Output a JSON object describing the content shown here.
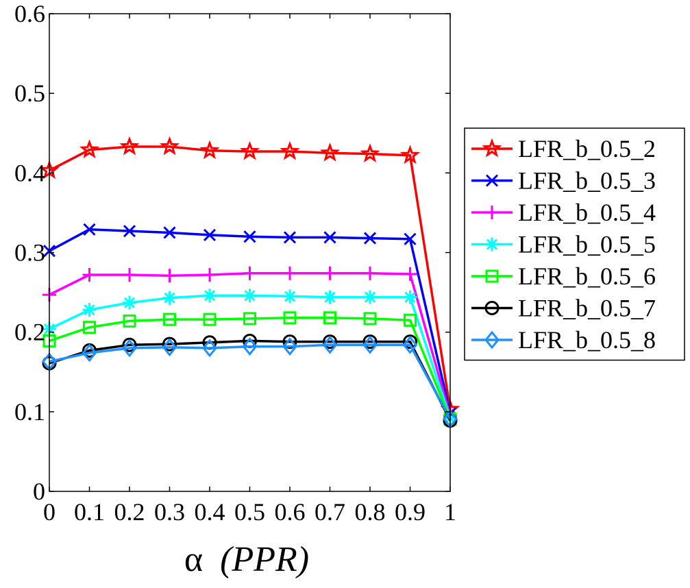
{
  "chart_data": {
    "type": "line",
    "title": "",
    "xlabel_symbol": "α",
    "xlabel_suffix": "(PPR)",
    "ylabel": "",
    "x": [
      0,
      0.1,
      0.2,
      0.3,
      0.4,
      0.5,
      0.6,
      0.7,
      0.8,
      0.9,
      1
    ],
    "xtick_labels": [
      "0",
      "0.1",
      "0.2",
      "0.3",
      "0.4",
      "0.5",
      "0.6",
      "0.7",
      "0.8",
      "0.9",
      "1"
    ],
    "xlim": [
      0,
      1
    ],
    "ylim": [
      0,
      0.6
    ],
    "yticks": [
      0,
      0.1,
      0.2,
      0.3,
      0.4,
      0.5,
      0.6
    ],
    "ytick_labels": [
      "0",
      "0.1",
      "0.2",
      "0.3",
      "0.4",
      "0.5",
      "0.6"
    ],
    "grid": false,
    "legend_position": "right",
    "series": [
      {
        "name": "LFR_b_0.5_2",
        "color": "#ff0000",
        "marker": "star",
        "values": [
          0.403,
          0.429,
          0.433,
          0.433,
          0.428,
          0.427,
          0.427,
          0.425,
          0.424,
          0.422,
          0.103
        ]
      },
      {
        "name": "LFR_b_0.5_3",
        "color": "#0000ff",
        "marker": "x",
        "values": [
          0.302,
          0.329,
          0.327,
          0.325,
          0.322,
          0.32,
          0.319,
          0.319,
          0.318,
          0.317,
          0.098
        ]
      },
      {
        "name": "LFR_b_0.5_4",
        "color": "#ff00ff",
        "marker": "plus",
        "values": [
          0.247,
          0.272,
          0.272,
          0.271,
          0.272,
          0.274,
          0.274,
          0.274,
          0.274,
          0.273,
          0.095
        ]
      },
      {
        "name": "LFR_b_0.5_5",
        "color": "#00ffff",
        "marker": "asterisk",
        "values": [
          0.204,
          0.228,
          0.237,
          0.243,
          0.246,
          0.246,
          0.245,
          0.244,
          0.244,
          0.244,
          0.092
        ]
      },
      {
        "name": "LFR_b_0.5_6",
        "color": "#00ff00",
        "marker": "square",
        "values": [
          0.189,
          0.206,
          0.214,
          0.216,
          0.216,
          0.217,
          0.218,
          0.218,
          0.217,
          0.215,
          0.091
        ]
      },
      {
        "name": "LFR_b_0.5_7",
        "color": "#000000",
        "marker": "circle",
        "values": [
          0.161,
          0.177,
          0.184,
          0.185,
          0.187,
          0.189,
          0.188,
          0.188,
          0.188,
          0.188,
          0.089
        ]
      },
      {
        "name": "LFR_b_0.5_8",
        "color": "#1e90ff",
        "marker": "diamond",
        "values": [
          0.163,
          0.174,
          0.18,
          0.181,
          0.18,
          0.182,
          0.182,
          0.184,
          0.184,
          0.184,
          0.091
        ]
      }
    ]
  }
}
